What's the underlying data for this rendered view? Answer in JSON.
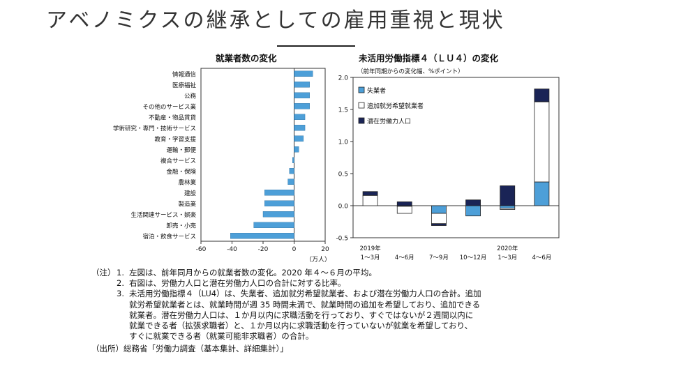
{
  "page": {
    "title": "アベノミクスの継承としての雇用重視と現状"
  },
  "chart_data": [
    {
      "type": "bar",
      "orientation": "horizontal",
      "title": "就業者数の変化",
      "unit_label": "（万人）",
      "categories": [
        "情報通信",
        "医療福祉",
        "公務",
        "その他のサービス業",
        "不動産・物品賃貸",
        "学術研究・専門・技術サービス",
        "教育・学習支援",
        "運輸・郵便",
        "複合サービス",
        "金融・保険",
        "農林業",
        "建設",
        "製造業",
        "生活関連サービス・娯楽",
        "卸売・小売",
        "宿泊・飲食サービス"
      ],
      "values": [
        12,
        10,
        10,
        10,
        7,
        7,
        6,
        3,
        -1,
        -3,
        -4,
        -19,
        -19,
        -20,
        -26,
        -41
      ],
      "xlim": [
        -60,
        20
      ],
      "xticks": [
        -60,
        -40,
        -20,
        0,
        20
      ],
      "color": "#4d9fd8",
      "grid": false
    },
    {
      "type": "stacked_bar",
      "title": "未活用労働指標４（ＬＵ４）の変化",
      "subtitle": "（前年同期からの変化幅、%ポイント）",
      "categories": [
        "1～3月",
        "4～6月",
        "7～9月",
        "10～12月",
        "1～3月",
        "4～6月"
      ],
      "year_labels": [
        {
          "index": 0,
          "label": "2019年"
        },
        {
          "index": 4,
          "label": "2020年"
        }
      ],
      "series": [
        {
          "name": "失業者",
          "color": "#4d9fd8",
          "values": [
            0.0,
            -0.01,
            -0.12,
            -0.16,
            -0.04,
            0.37
          ]
        },
        {
          "name": "追加就労希望就業者",
          "color": "#ffffff",
          "values": [
            0.16,
            -0.11,
            -0.16,
            0.0,
            -0.02,
            1.25
          ]
        },
        {
          "name": "潜在労働力人口",
          "color": "#1a2456",
          "values": [
            0.06,
            0.06,
            -0.03,
            0.09,
            0.31,
            0.2
          ]
        }
      ],
      "ylim": [
        -0.5,
        2.0
      ],
      "yticks": [
        "2.0",
        "1.5",
        "1.0",
        "0.5",
        "0.0",
        "-0.5"
      ],
      "legend_position": "top-left",
      "grid": false
    }
  ],
  "notes": {
    "head": "（注）",
    "items": [
      {
        "num": "1.",
        "lines": [
          "左図は、前年同月からの就業者数の変化。2020 年４～６月の平均。"
        ]
      },
      {
        "num": "2.",
        "lines": [
          "右図は、労働力人口と潜在労働力人口の合計に対する比率。"
        ]
      },
      {
        "num": "3.",
        "lines": [
          "未活用労働指標４（LU4）は、失業者、追加就労希望就業者、および潜在労働力人口の合計。追加",
          "就労希望就業者とは、就業時間が週 35 時間未満で、就業時間の追加を希望しており、追加できる",
          "就業者。潜在労働力人口は、１か月以内に求職活動を行っており、すぐではないが２週間以内に",
          "就業できる者（拡張求職者）と、１か月以内に求職活動を行っていないが就業を希望しており、",
          "すぐに就業できる者（就業可能非求職者）の合計。"
        ]
      }
    ],
    "source": "（出所）総務省「労働力調査（基本集計、詳細集計）」"
  }
}
